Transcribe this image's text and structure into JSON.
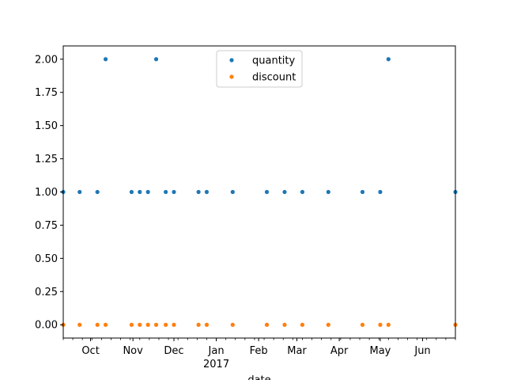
{
  "chart_data": {
    "type": "scatter",
    "title": "",
    "xlabel": "date",
    "ylabel": "",
    "xlim": [
      "2016-09-11",
      "2017-06-25"
    ],
    "ylim": [
      -0.1,
      2.1
    ],
    "grid": false,
    "legend_position": "top-center",
    "yticks": [
      "0.00",
      "0.25",
      "0.50",
      "0.75",
      "1.00",
      "1.25",
      "1.50",
      "1.75",
      "2.00"
    ],
    "xticks": [
      {
        "date": "2016-10-01",
        "label": "Oct",
        "sublabel": ""
      },
      {
        "date": "2016-11-01",
        "label": "Nov",
        "sublabel": ""
      },
      {
        "date": "2016-12-01",
        "label": "Dec",
        "sublabel": ""
      },
      {
        "date": "2017-01-01",
        "label": "Jan",
        "sublabel": "2017"
      },
      {
        "date": "2017-02-01",
        "label": "Feb",
        "sublabel": ""
      },
      {
        "date": "2017-03-01",
        "label": "Mar",
        "sublabel": ""
      },
      {
        "date": "2017-04-01",
        "label": "Apr",
        "sublabel": ""
      },
      {
        "date": "2017-05-01",
        "label": "May",
        "sublabel": ""
      },
      {
        "date": "2017-06-01",
        "label": "Jun",
        "sublabel": ""
      }
    ],
    "series": [
      {
        "name": "quantity",
        "color": "#1f77b4",
        "points": [
          [
            "2016-09-11",
            1
          ],
          [
            "2016-09-23",
            1
          ],
          [
            "2016-10-06",
            1
          ],
          [
            "2016-10-12",
            2
          ],
          [
            "2016-10-31",
            1
          ],
          [
            "2016-11-06",
            1
          ],
          [
            "2016-11-12",
            1
          ],
          [
            "2016-11-18",
            2
          ],
          [
            "2016-11-25",
            1
          ],
          [
            "2016-12-01",
            1
          ],
          [
            "2016-12-19",
            1
          ],
          [
            "2016-12-25",
            1
          ],
          [
            "2017-01-13",
            1
          ],
          [
            "2017-02-07",
            1
          ],
          [
            "2017-02-20",
            1
          ],
          [
            "2017-03-05",
            1
          ],
          [
            "2017-03-24",
            1
          ],
          [
            "2017-04-18",
            1
          ],
          [
            "2017-05-01",
            1
          ],
          [
            "2017-05-07",
            2
          ],
          [
            "2017-06-25",
            1
          ]
        ]
      },
      {
        "name": "discount",
        "color": "#ff7f0e",
        "points": [
          [
            "2016-09-11",
            0
          ],
          [
            "2016-09-23",
            0
          ],
          [
            "2016-10-06",
            0
          ],
          [
            "2016-10-12",
            0
          ],
          [
            "2016-10-31",
            0
          ],
          [
            "2016-11-06",
            0
          ],
          [
            "2016-11-12",
            0
          ],
          [
            "2016-11-18",
            0
          ],
          [
            "2016-11-25",
            0
          ],
          [
            "2016-12-01",
            0
          ],
          [
            "2016-12-19",
            0
          ],
          [
            "2016-12-25",
            0
          ],
          [
            "2017-01-13",
            0
          ],
          [
            "2017-02-07",
            0
          ],
          [
            "2017-02-20",
            0
          ],
          [
            "2017-03-05",
            0
          ],
          [
            "2017-03-24",
            0
          ],
          [
            "2017-04-18",
            0
          ],
          [
            "2017-05-01",
            0
          ],
          [
            "2017-05-07",
            0
          ],
          [
            "2017-06-25",
            0
          ]
        ]
      }
    ]
  }
}
